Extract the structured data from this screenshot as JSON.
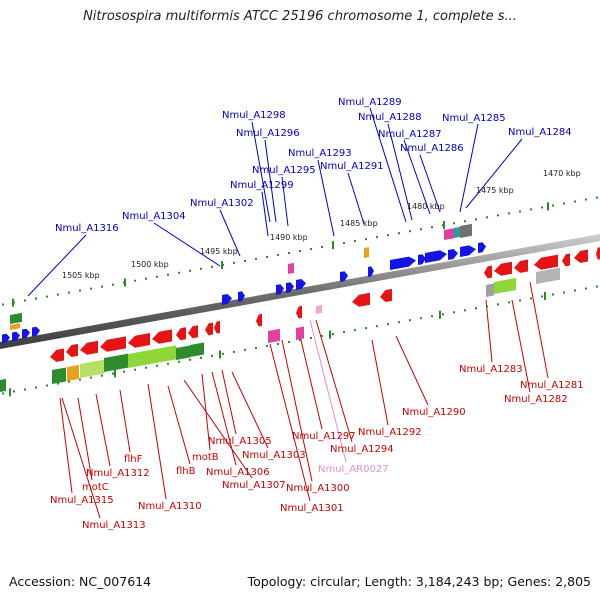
{
  "title": "Nitrosospira multiformis ATCC 25196 chromosome 1, complete s...",
  "footer": {
    "accession": "Accession: NC_007614",
    "topology": "Topology: circular; Length: 3,184,243 bp; Genes: 2,805"
  },
  "colors": {
    "top_labels": "#0000cc",
    "bottom_labels": "#cc0000",
    "rna_label": "#e28fc9",
    "plus_strand": "#1414e6",
    "minus_strand": "#e61414",
    "backbone": "#7a7a7a",
    "ruler": "#2a8a2a"
  },
  "kbp_labels": [
    "1470 kbp",
    "1475 kbp",
    "1480 kbp",
    "1485 kbp",
    "1490 kbp",
    "1495 kbp",
    "1500 kbp",
    "1505 kbp"
  ],
  "top_gene_labels": [
    "Nmul_A1289",
    "Nmul_A1298",
    "Nmul_A1288",
    "Nmul_A1285",
    "Nmul_A1296",
    "Nmul_A1287",
    "Nmul_A1284",
    "Nmul_A1286",
    "Nmul_A1293",
    "Nmul_A1295",
    "Nmul_A1291",
    "Nmul_A1299",
    "Nmul_A1302",
    "Nmul_A1304",
    "Nmul_A1316"
  ],
  "bottom_gene_labels": [
    "Nmul_A1283",
    "Nmul_A1281",
    "Nmul_A1282",
    "Nmul_A1290",
    "Nmul_A1292",
    "Nmul_A1297",
    "Nmul_A1294",
    "Nmul_AR0027",
    "Nmul_A1305",
    "Nmul_A1303",
    "motB",
    "Nmul_A1306",
    "Nmul_A1307",
    "flhB",
    "flhF",
    "Nmul_A1312",
    "motC",
    "Nmul_A1300",
    "Nmul_A1315",
    "Nmul_A1310",
    "Nmul_A1301",
    "Nmul_A1313"
  ]
}
